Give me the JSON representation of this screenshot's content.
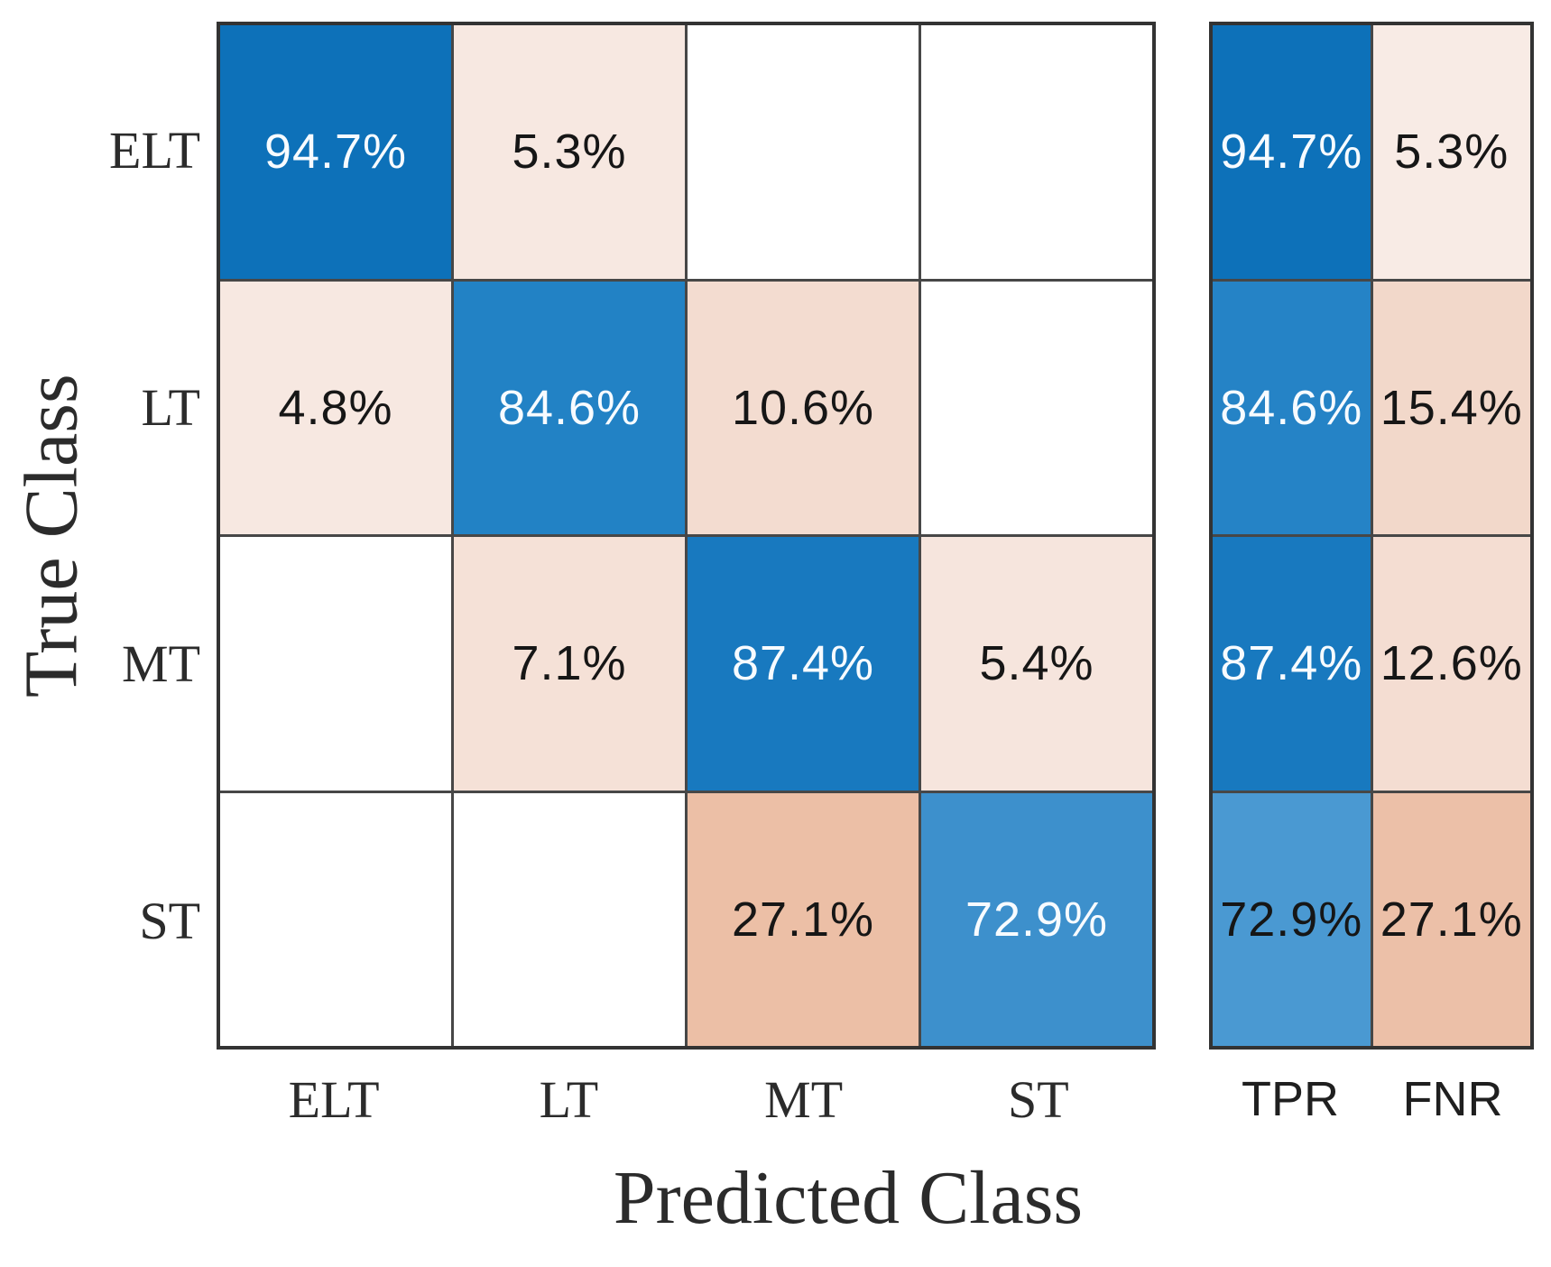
{
  "chart_data": {
    "type": "heatmap",
    "subtype": "confusion_matrix",
    "xlabel": "Predicted Class",
    "ylabel": "True Class",
    "classes": [
      "ELT",
      "LT",
      "MT",
      "ST"
    ],
    "summary_columns": [
      "TPR",
      "FNR"
    ],
    "matrix_percent": [
      [
        94.7,
        5.3,
        null,
        null
      ],
      [
        4.8,
        84.6,
        10.6,
        null
      ],
      [
        null,
        7.1,
        87.4,
        5.4
      ],
      [
        null,
        null,
        27.1,
        72.9
      ]
    ],
    "tpr_percent": [
      94.7,
      84.6,
      87.4,
      72.9
    ],
    "fnr_percent": [
      5.3,
      15.4,
      12.6,
      27.1
    ],
    "legend_position": "none",
    "grid": true
  },
  "colors": {
    "grid_line": "#474747",
    "outer_border": "#333333",
    "diagonal_blue_strong": "#0d71b9",
    "diagonal_blue_mid": "#2282c5",
    "diagonal_blue_light": "#3d90cc",
    "off_diagonal_salmon_strong": "#ecbfa6",
    "off_diagonal_pink_light": "#f7e8e1",
    "value_text_light": "#f7fbff",
    "value_text_dark": "#161616"
  },
  "cells": {
    "matrix": [
      [
        {
          "label": "94.7%",
          "bg": "#0d71b9",
          "fg": "#f7fbff"
        },
        {
          "label": "5.3%",
          "bg": "#f7e8e1",
          "fg": "#161616"
        },
        {
          "label": "",
          "bg": "#ffffff",
          "fg": "#161616"
        },
        {
          "label": "",
          "bg": "#ffffff",
          "fg": "#161616"
        }
      ],
      [
        {
          "label": "4.8%",
          "bg": "#f7e8e1",
          "fg": "#161616"
        },
        {
          "label": "84.6%",
          "bg": "#2282c5",
          "fg": "#f7fbff"
        },
        {
          "label": "10.6%",
          "bg": "#f3dcd0",
          "fg": "#161616"
        },
        {
          "label": "",
          "bg": "#ffffff",
          "fg": "#161616"
        }
      ],
      [
        {
          "label": "",
          "bg": "#ffffff",
          "fg": "#161616"
        },
        {
          "label": "7.1%",
          "bg": "#f5e1d7",
          "fg": "#161616"
        },
        {
          "label": "87.4%",
          "bg": "#1879bf",
          "fg": "#f7fbff"
        },
        {
          "label": "5.4%",
          "bg": "#f6e5dd",
          "fg": "#161616"
        }
      ],
      [
        {
          "label": "",
          "bg": "#ffffff",
          "fg": "#161616"
        },
        {
          "label": "",
          "bg": "#ffffff",
          "fg": "#161616"
        },
        {
          "label": "27.1%",
          "bg": "#ecbfa6",
          "fg": "#161616"
        },
        {
          "label": "72.9%",
          "bg": "#3d90cc",
          "fg": "#f7fbff"
        }
      ]
    ],
    "summary": [
      [
        {
          "label": "94.7%",
          "bg": "#0d71b9",
          "fg": "#f7fbff"
        },
        {
          "label": "5.3%",
          "bg": "#f8ebe5",
          "fg": "#161616"
        }
      ],
      [
        {
          "label": "84.6%",
          "bg": "#2583c6",
          "fg": "#f7fbff"
        },
        {
          "label": "15.4%",
          "bg": "#f2d8ca",
          "fg": "#161616"
        }
      ],
      [
        {
          "label": "87.4%",
          "bg": "#1879bf",
          "fg": "#f7fbff"
        },
        {
          "label": "12.6%",
          "bg": "#f4ddd2",
          "fg": "#161616"
        }
      ],
      [
        {
          "label": "72.9%",
          "bg": "#4a99d2",
          "fg": "#161616"
        },
        {
          "label": "27.1%",
          "bg": "#ecc0a8",
          "fg": "#161616"
        }
      ]
    ]
  },
  "labels": {
    "y_ticks": [
      "ELT",
      "LT",
      "MT",
      "ST"
    ],
    "x_ticks_main": [
      "ELT",
      "LT",
      "MT",
      "ST"
    ],
    "x_ticks_summary": [
      "TPR",
      "FNR"
    ],
    "x_axis_title": "Predicted Class",
    "y_axis_title": "True Class"
  }
}
